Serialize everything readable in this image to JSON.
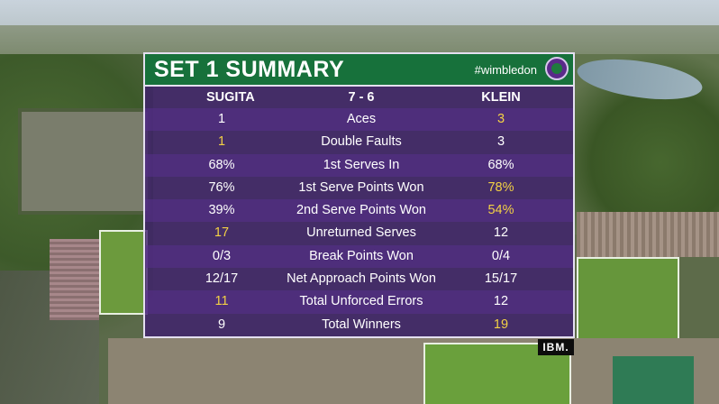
{
  "header": {
    "title": "SET 1 SUMMARY",
    "hashtag": "#wimbledon",
    "logo_icon": "wimbledon-logo-icon"
  },
  "players": {
    "left": "SUGITA",
    "score": "7 - 6",
    "right": "KLEIN"
  },
  "stats": [
    {
      "label": "Aces",
      "left": "1",
      "right": "3",
      "highlight": "right"
    },
    {
      "label": "Double Faults",
      "left": "1",
      "right": "3",
      "highlight": "left"
    },
    {
      "label": "1st Serves In",
      "left": "68%",
      "right": "68%",
      "highlight": "none"
    },
    {
      "label": "1st Serve Points Won",
      "left": "76%",
      "right": "78%",
      "highlight": "right"
    },
    {
      "label": "2nd Serve Points Won",
      "left": "39%",
      "right": "54%",
      "highlight": "right"
    },
    {
      "label": "Unreturned Serves",
      "left": "17",
      "right": "12",
      "highlight": "left"
    },
    {
      "label": "Break Points Won",
      "left": "0/3",
      "right": "0/4",
      "highlight": "none"
    },
    {
      "label": "Net Approach Points Won",
      "left": "12/17",
      "right": "15/17",
      "highlight": "none"
    },
    {
      "label": "Total Unforced Errors",
      "left": "11",
      "right": "12",
      "highlight": "left"
    },
    {
      "label": "Total Winners",
      "left": "9",
      "right": "19",
      "highlight": "right"
    }
  ],
  "sponsor": "IBM.",
  "colors": {
    "header_green": "#17713b",
    "panel_purple": "#3e1e6e",
    "highlight_yellow": "#f3d144"
  }
}
